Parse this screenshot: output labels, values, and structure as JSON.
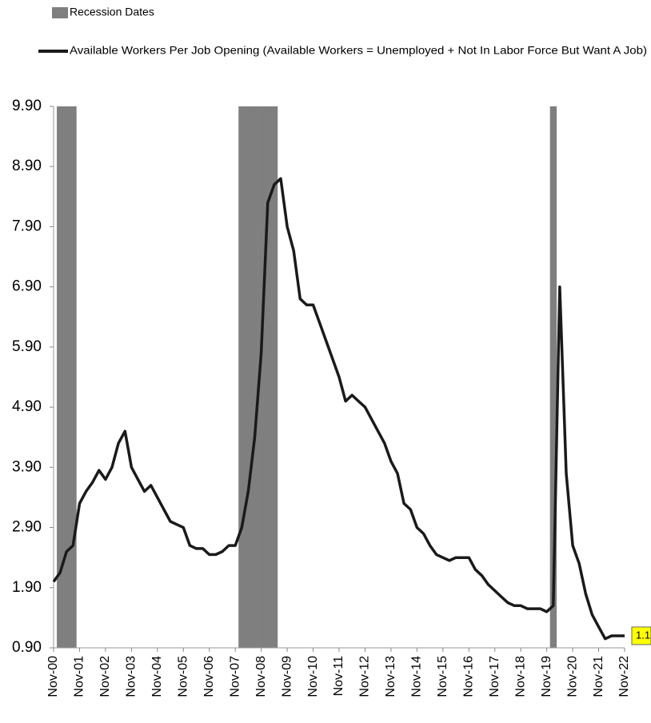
{
  "chart_data": {
    "type": "line",
    "categories": [
      "Nov-00",
      null,
      null,
      null,
      "Nov-01",
      null,
      null,
      null,
      "Nov-02",
      null,
      null,
      null,
      "Nov-03",
      null,
      null,
      null,
      "Nov-04",
      null,
      null,
      null,
      "Nov-05",
      null,
      null,
      null,
      "Nov-06",
      null,
      null,
      null,
      "Nov-07",
      null,
      null,
      null,
      "Nov-08",
      null,
      null,
      null,
      "Nov-09",
      null,
      null,
      null,
      "Nov-10",
      null,
      null,
      null,
      "Nov-11",
      null,
      null,
      null,
      "Nov-12",
      null,
      null,
      null,
      "Nov-13",
      null,
      null,
      null,
      "Nov-14",
      null,
      null,
      null,
      "Nov-15",
      null,
      null,
      null,
      "Nov-16",
      null,
      null,
      null,
      "Nov-17",
      null,
      null,
      null,
      "Nov-18",
      null,
      null,
      null,
      "Nov-19",
      null,
      null,
      null,
      "Nov-20",
      null,
      null,
      null,
      "Nov-21",
      null,
      null,
      null,
      "Nov-22"
    ],
    "series": [
      {
        "name": "Recession Dates",
        "type": "bar",
        "color": "#7f7f7f",
        "values": [
          null,
          9.9,
          9.9,
          9.9,
          null,
          null,
          null,
          null,
          null,
          null,
          null,
          null,
          null,
          null,
          null,
          null,
          null,
          null,
          null,
          null,
          null,
          null,
          null,
          null,
          null,
          null,
          null,
          null,
          null,
          9.9,
          9.9,
          9.9,
          9.9,
          9.9,
          9.9,
          null,
          null,
          null,
          null,
          null,
          null,
          null,
          null,
          null,
          null,
          null,
          null,
          null,
          null,
          null,
          null,
          null,
          null,
          null,
          null,
          null,
          null,
          null,
          null,
          null,
          null,
          null,
          null,
          null,
          null,
          null,
          null,
          null,
          null,
          null,
          null,
          null,
          null,
          null,
          null,
          null,
          null,
          9.9,
          null,
          null,
          null,
          null,
          null,
          null,
          null,
          null,
          null,
          null,
          null
        ]
      },
      {
        "name": "Available Workers Per Job Opening (Available Workers = Unemployed + Not In Labor Force But Want A Job)",
        "type": "line",
        "color": "#1a1a1a",
        "values": [
          2.0,
          2.15,
          2.5,
          2.6,
          3.3,
          3.5,
          3.65,
          3.85,
          3.7,
          3.9,
          4.3,
          4.5,
          3.9,
          3.7,
          3.5,
          3.6,
          3.4,
          3.2,
          3.0,
          2.95,
          2.9,
          2.6,
          2.55,
          2.55,
          2.45,
          2.45,
          2.5,
          2.6,
          2.6,
          2.9,
          3.5,
          4.4,
          5.8,
          8.3,
          8.6,
          8.7,
          7.9,
          7.5,
          6.7,
          6.6,
          6.6,
          6.3,
          6.0,
          5.7,
          5.4,
          5.0,
          5.1,
          5.0,
          4.9,
          4.7,
          4.5,
          4.3,
          4.0,
          3.8,
          3.3,
          3.2,
          2.9,
          2.8,
          2.6,
          2.45,
          2.4,
          2.35,
          2.4,
          2.4,
          2.4,
          2.2,
          2.1,
          1.95,
          1.85,
          1.75,
          1.65,
          1.6,
          1.6,
          1.55,
          1.55,
          1.55,
          1.5,
          1.6,
          6.9,
          3.8,
          2.6,
          2.3,
          1.8,
          1.45,
          1.25,
          1.05,
          1.1,
          1.1,
          1.1
        ],
        "value_labels": [
          null,
          null,
          null,
          null,
          null,
          null,
          null,
          null,
          null,
          null,
          null,
          null,
          null,
          null,
          null,
          null,
          null,
          null,
          null,
          null,
          null,
          null,
          null,
          null,
          null,
          null,
          null,
          null,
          null,
          null,
          null,
          null,
          null,
          null,
          null,
          null,
          null,
          null,
          null,
          null,
          null,
          null,
          null,
          null,
          null,
          null,
          null,
          null,
          null,
          null,
          null,
          null,
          null,
          null,
          null,
          null,
          null,
          null,
          null,
          null,
          null,
          null,
          null,
          null,
          null,
          null,
          null,
          null,
          null,
          null,
          null,
          null,
          null,
          null,
          null,
          null,
          null,
          null,
          null,
          null,
          null,
          null,
          null,
          null,
          null,
          null,
          null,
          null,
          "1.1"
        ]
      }
    ],
    "ylim": [
      0.9,
      9.9
    ],
    "yticks": [
      {
        "value": 0.9,
        "label": "0.90"
      },
      {
        "value": 1.9,
        "label": "1.90"
      },
      {
        "value": 2.9,
        "label": "2.90"
      },
      {
        "value": 3.9,
        "label": "3.90"
      },
      {
        "value": 4.9,
        "label": "4.90"
      },
      {
        "value": 5.9,
        "label": "5.90"
      },
      {
        "value": 6.9,
        "label": "6.90"
      },
      {
        "value": 7.9,
        "label": "7.90"
      },
      {
        "value": 8.9,
        "label": "8.90"
      },
      {
        "value": 9.9,
        "label": "9.90"
      }
    ],
    "grid": false
  }
}
